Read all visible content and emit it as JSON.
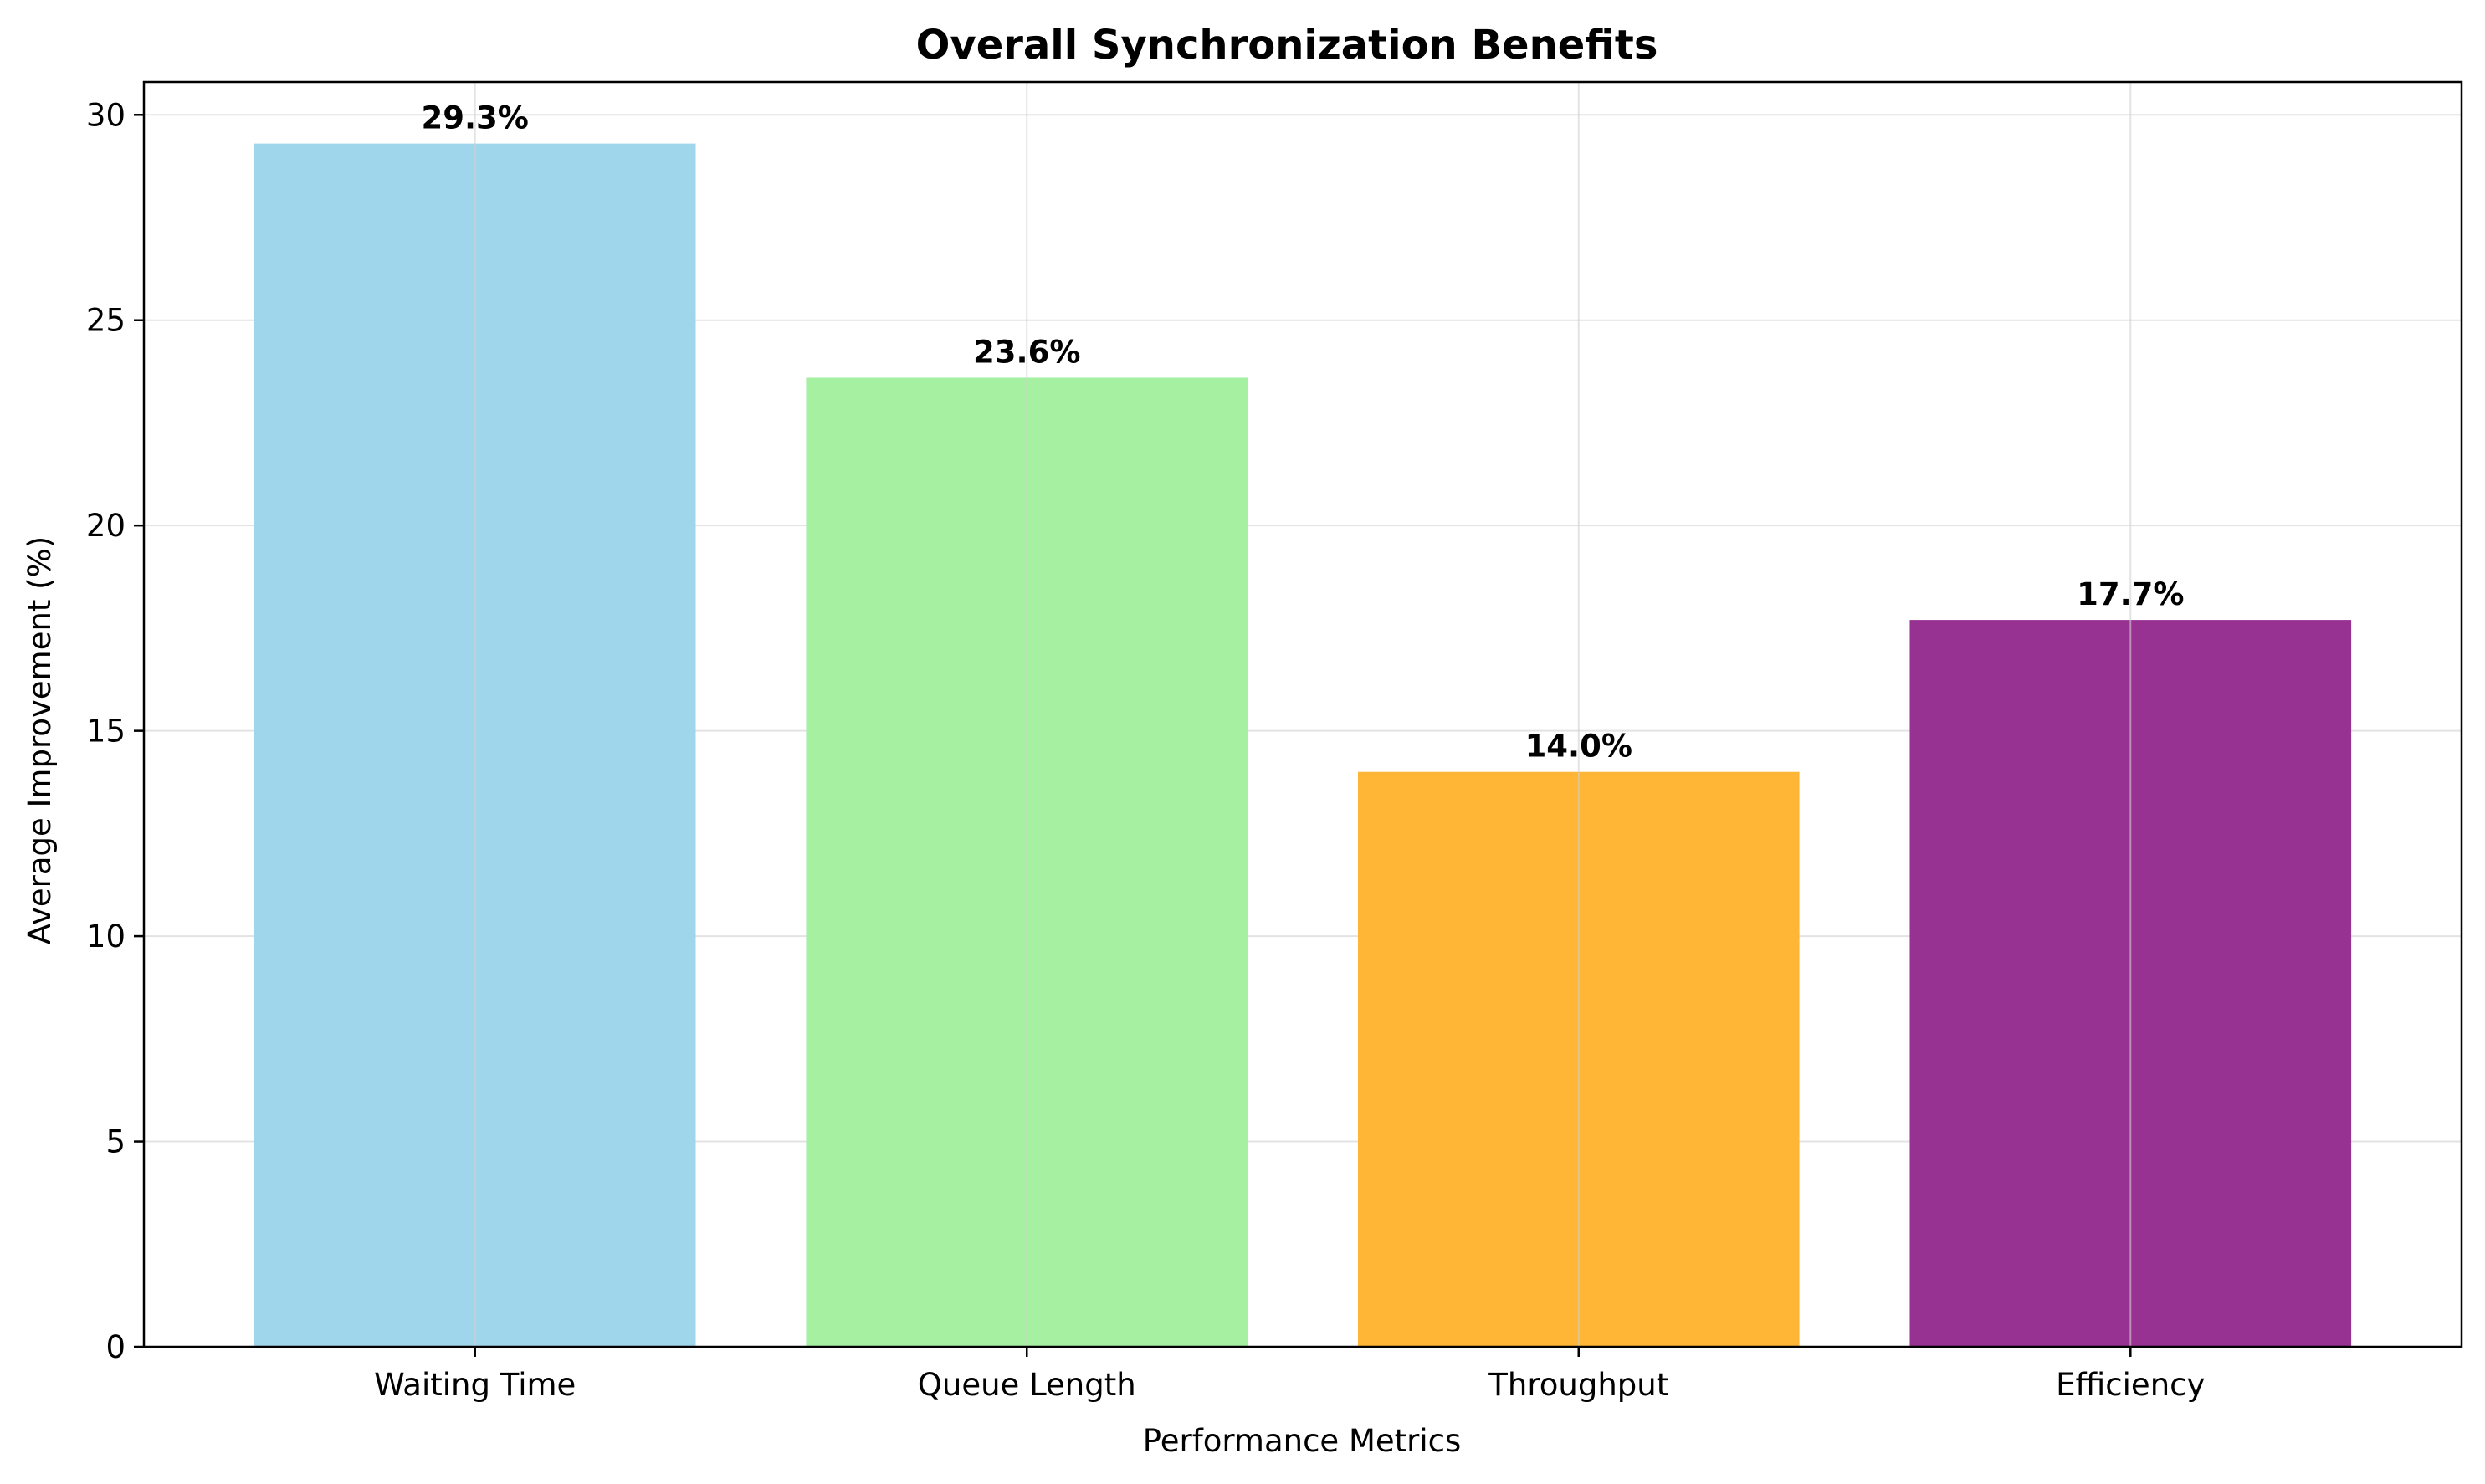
{
  "chart_data": {
    "type": "bar",
    "title": "Overall Synchronization Benefits",
    "xlabel": "Performance Metrics",
    "ylabel": "Average Improvement (%)",
    "categories": [
      "Waiting Time",
      "Queue Length",
      "Throughput",
      "Efficiency"
    ],
    "values": [
      29.3,
      23.6,
      14.0,
      17.7
    ],
    "data_labels": [
      "29.3%",
      "23.6%",
      "14.0%",
      "17.7%"
    ],
    "colors": [
      "#9fd6ec",
      "#a6f0a2",
      "#ffb535",
      "#973192"
    ],
    "ylim": [
      0,
      30.8
    ],
    "yticks": [
      0,
      5,
      10,
      15,
      20,
      25,
      30
    ],
    "grid": true,
    "legend": "none"
  }
}
